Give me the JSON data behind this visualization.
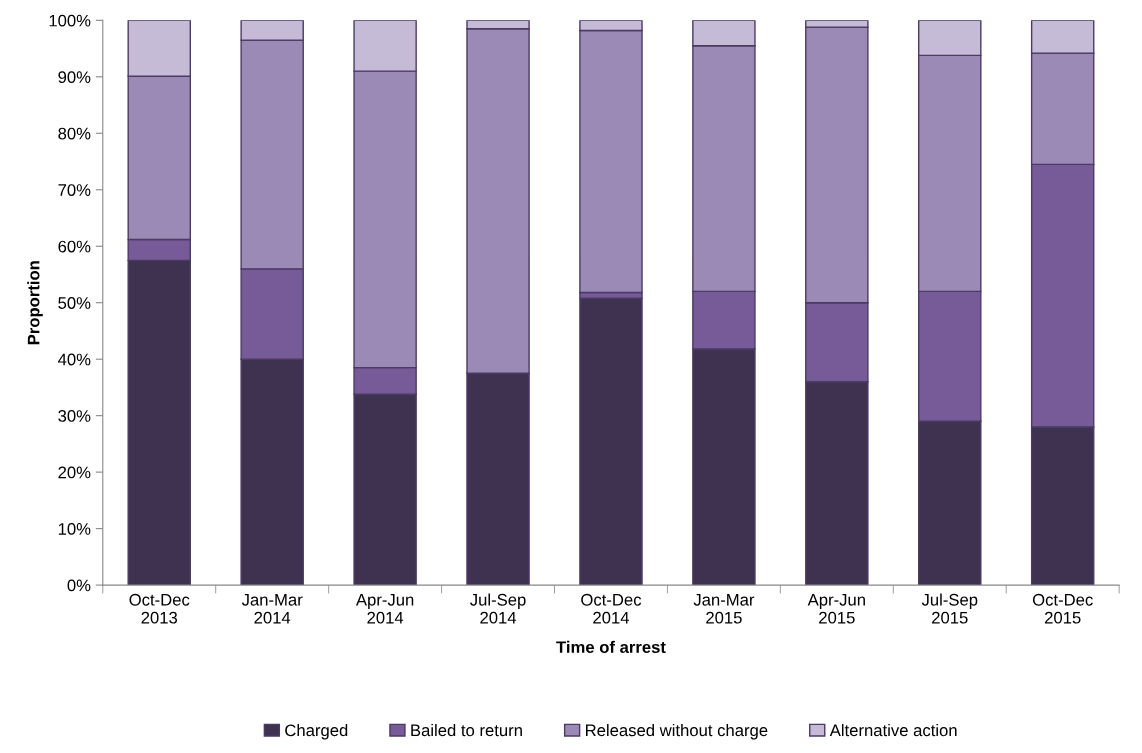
{
  "chart_data": {
    "type": "bar",
    "stacked": true,
    "xlabel": "Time of arrest",
    "ylabel": "Proportion",
    "categories": [
      "Oct-Dec\n2013",
      "Jan-Mar\n2014",
      "Apr-Jun\n2014",
      "Jul-Sep\n2014",
      "Oct-Dec\n2014",
      "Jan-Mar\n2015",
      "Apr-Jun\n2015",
      "Jul-Sep\n2015",
      "Oct-Dec\n2015"
    ],
    "series": [
      {
        "name": "Charged",
        "color": "#3f3150",
        "values": [
          57.5,
          40,
          33.8,
          37.5,
          50.8,
          41.8,
          36,
          29,
          28
        ]
      },
      {
        "name": "Bailed to return",
        "color": "#775b98",
        "values": [
          3.7,
          16,
          4.7,
          0,
          1.0,
          10.2,
          14,
          23,
          46.5
        ]
      },
      {
        "name": "Released without charge",
        "color": "#9b8ab5",
        "values": [
          28.9,
          40.5,
          52.5,
          61,
          46.4,
          43.5,
          48.8,
          41.8,
          19.7
        ]
      },
      {
        "name": "Alternative action",
        "color": "#c5bbd6",
        "values": [
          9.9,
          3.5,
          9,
          1.5,
          1.8,
          4.5,
          1.2,
          6.2,
          5.8
        ]
      }
    ],
    "ylim": [
      0,
      100
    ],
    "yticks": [
      {
        "value": 0,
        "label": "0%"
      },
      {
        "value": 10,
        "label": "10%"
      },
      {
        "value": 20,
        "label": "20%"
      },
      {
        "value": 30,
        "label": "30%"
      },
      {
        "value": 40,
        "label": "40%"
      },
      {
        "value": 50,
        "label": "50%"
      },
      {
        "value": 60,
        "label": "60%"
      },
      {
        "value": 70,
        "label": "70%"
      },
      {
        "value": 80,
        "label": "80%"
      },
      {
        "value": 90,
        "label": "90%"
      },
      {
        "value": 100,
        "label": "100%"
      }
    ],
    "grid": false,
    "legend": "bottom"
  }
}
